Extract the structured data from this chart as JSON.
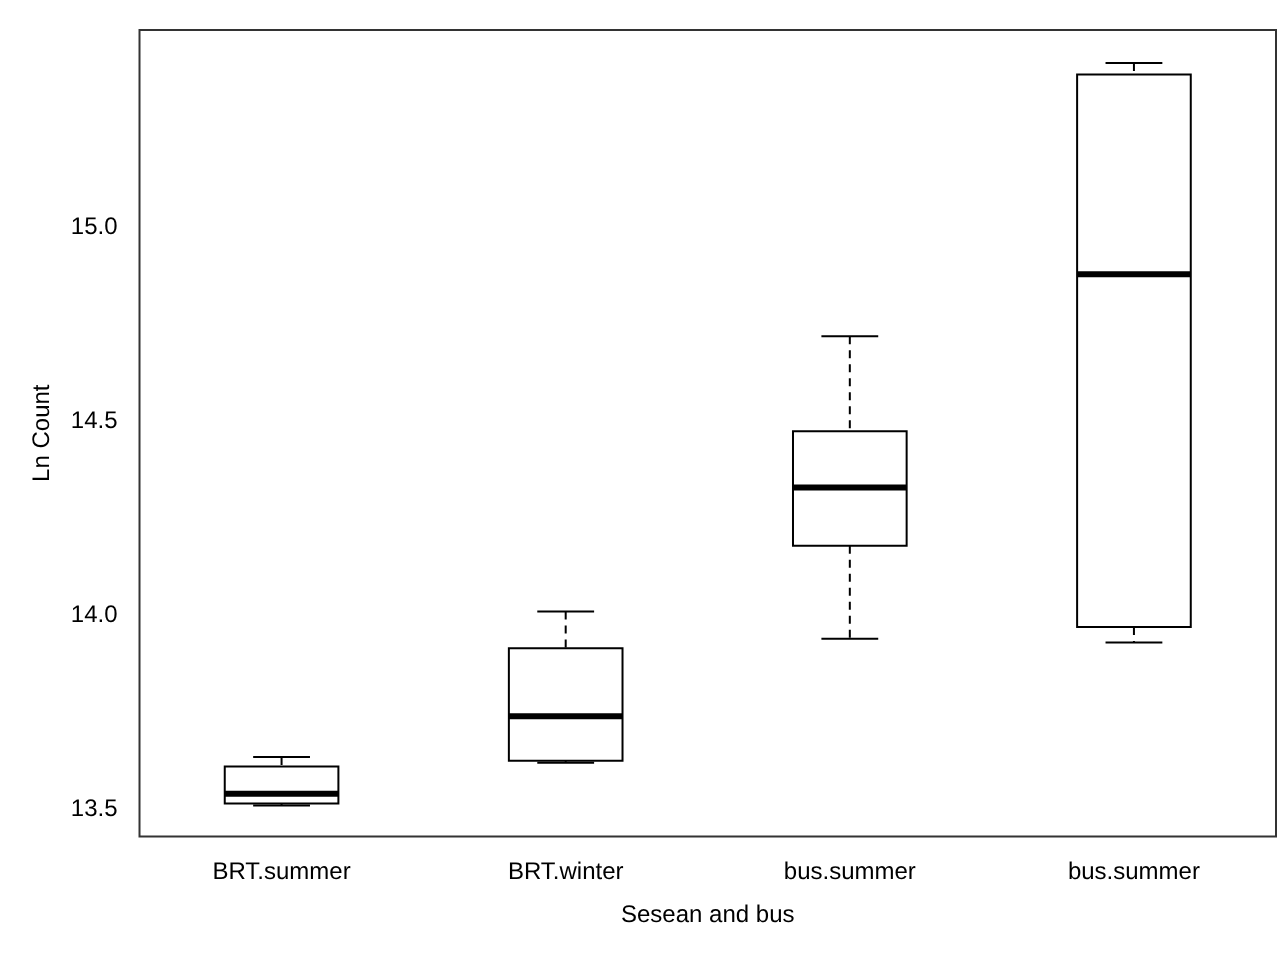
{
  "chart_data": {
    "type": "box",
    "xlabel": "Sesean and bus",
    "ylabel": "Ln Count",
    "categories": [
      "BRT.summer",
      "BRT.winter",
      "bus.summer",
      "bus.summer"
    ],
    "boxes": [
      {
        "low": 13.51,
        "q1": 13.515,
        "median": 13.54,
        "q3": 13.61,
        "high": 13.635
      },
      {
        "low": 13.62,
        "q1": 13.625,
        "median": 13.74,
        "q3": 13.915,
        "high": 14.01
      },
      {
        "low": 13.94,
        "q1": 14.18,
        "median": 14.33,
        "q3": 14.475,
        "high": 14.72
      },
      {
        "low": 13.93,
        "q1": 13.97,
        "median": 14.88,
        "q3": 15.395,
        "high": 15.425
      }
    ],
    "color": "#000000",
    "line_style": "dashed",
    "ylim": [
      13.43,
      15.51
    ],
    "yticks": [
      13.5,
      {
        "value": 14,
        "label": "14.0"
      },
      14.5,
      {
        "value": 15,
        "label": "15.0"
      }
    ],
    "grid": false,
    "legend": false
  }
}
